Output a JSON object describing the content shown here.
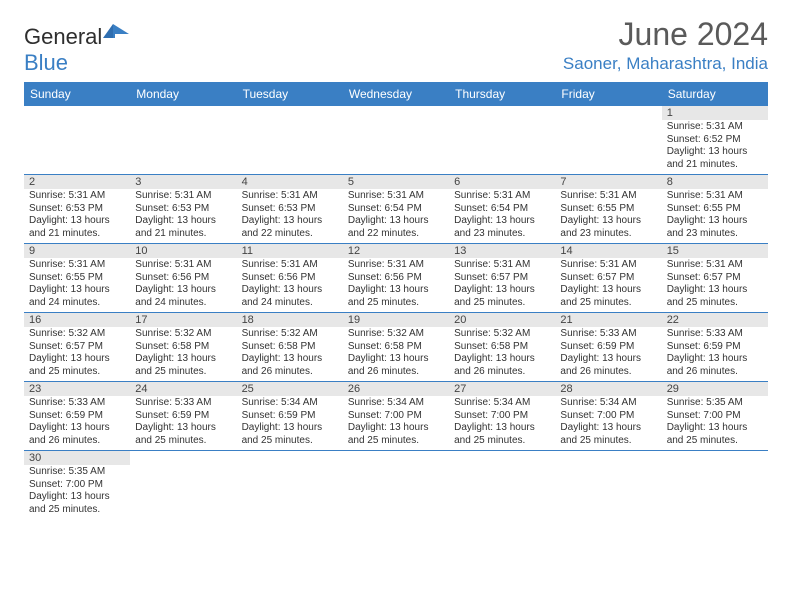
{
  "brand": {
    "part1": "General",
    "part2": "Blue"
  },
  "title": "June 2024",
  "location": "Saoner, Maharashtra, India",
  "colors": {
    "header_bg": "#3a7fc4",
    "header_text": "#ffffff",
    "daynum_bg": "#e7e7e7",
    "week_border": "#3a7fc4",
    "title_color": "#5a5a5a",
    "location_color": "#3a7fc4"
  },
  "day_names": [
    "Sunday",
    "Monday",
    "Tuesday",
    "Wednesday",
    "Thursday",
    "Friday",
    "Saturday"
  ],
  "weeks": [
    [
      null,
      null,
      null,
      null,
      null,
      null,
      {
        "n": "1",
        "sr": "Sunrise: 5:31 AM",
        "ss": "Sunset: 6:52 PM",
        "dl": "Daylight: 13 hours and 21 minutes."
      }
    ],
    [
      {
        "n": "2",
        "sr": "Sunrise: 5:31 AM",
        "ss": "Sunset: 6:53 PM",
        "dl": "Daylight: 13 hours and 21 minutes."
      },
      {
        "n": "3",
        "sr": "Sunrise: 5:31 AM",
        "ss": "Sunset: 6:53 PM",
        "dl": "Daylight: 13 hours and 21 minutes."
      },
      {
        "n": "4",
        "sr": "Sunrise: 5:31 AM",
        "ss": "Sunset: 6:53 PM",
        "dl": "Daylight: 13 hours and 22 minutes."
      },
      {
        "n": "5",
        "sr": "Sunrise: 5:31 AM",
        "ss": "Sunset: 6:54 PM",
        "dl": "Daylight: 13 hours and 22 minutes."
      },
      {
        "n": "6",
        "sr": "Sunrise: 5:31 AM",
        "ss": "Sunset: 6:54 PM",
        "dl": "Daylight: 13 hours and 23 minutes."
      },
      {
        "n": "7",
        "sr": "Sunrise: 5:31 AM",
        "ss": "Sunset: 6:55 PM",
        "dl": "Daylight: 13 hours and 23 minutes."
      },
      {
        "n": "8",
        "sr": "Sunrise: 5:31 AM",
        "ss": "Sunset: 6:55 PM",
        "dl": "Daylight: 13 hours and 23 minutes."
      }
    ],
    [
      {
        "n": "9",
        "sr": "Sunrise: 5:31 AM",
        "ss": "Sunset: 6:55 PM",
        "dl": "Daylight: 13 hours and 24 minutes."
      },
      {
        "n": "10",
        "sr": "Sunrise: 5:31 AM",
        "ss": "Sunset: 6:56 PM",
        "dl": "Daylight: 13 hours and 24 minutes."
      },
      {
        "n": "11",
        "sr": "Sunrise: 5:31 AM",
        "ss": "Sunset: 6:56 PM",
        "dl": "Daylight: 13 hours and 24 minutes."
      },
      {
        "n": "12",
        "sr": "Sunrise: 5:31 AM",
        "ss": "Sunset: 6:56 PM",
        "dl": "Daylight: 13 hours and 25 minutes."
      },
      {
        "n": "13",
        "sr": "Sunrise: 5:31 AM",
        "ss": "Sunset: 6:57 PM",
        "dl": "Daylight: 13 hours and 25 minutes."
      },
      {
        "n": "14",
        "sr": "Sunrise: 5:31 AM",
        "ss": "Sunset: 6:57 PM",
        "dl": "Daylight: 13 hours and 25 minutes."
      },
      {
        "n": "15",
        "sr": "Sunrise: 5:31 AM",
        "ss": "Sunset: 6:57 PM",
        "dl": "Daylight: 13 hours and 25 minutes."
      }
    ],
    [
      {
        "n": "16",
        "sr": "Sunrise: 5:32 AM",
        "ss": "Sunset: 6:57 PM",
        "dl": "Daylight: 13 hours and 25 minutes."
      },
      {
        "n": "17",
        "sr": "Sunrise: 5:32 AM",
        "ss": "Sunset: 6:58 PM",
        "dl": "Daylight: 13 hours and 25 minutes."
      },
      {
        "n": "18",
        "sr": "Sunrise: 5:32 AM",
        "ss": "Sunset: 6:58 PM",
        "dl": "Daylight: 13 hours and 26 minutes."
      },
      {
        "n": "19",
        "sr": "Sunrise: 5:32 AM",
        "ss": "Sunset: 6:58 PM",
        "dl": "Daylight: 13 hours and 26 minutes."
      },
      {
        "n": "20",
        "sr": "Sunrise: 5:32 AM",
        "ss": "Sunset: 6:58 PM",
        "dl": "Daylight: 13 hours and 26 minutes."
      },
      {
        "n": "21",
        "sr": "Sunrise: 5:33 AM",
        "ss": "Sunset: 6:59 PM",
        "dl": "Daylight: 13 hours and 26 minutes."
      },
      {
        "n": "22",
        "sr": "Sunrise: 5:33 AM",
        "ss": "Sunset: 6:59 PM",
        "dl": "Daylight: 13 hours and 26 minutes."
      }
    ],
    [
      {
        "n": "23",
        "sr": "Sunrise: 5:33 AM",
        "ss": "Sunset: 6:59 PM",
        "dl": "Daylight: 13 hours and 26 minutes."
      },
      {
        "n": "24",
        "sr": "Sunrise: 5:33 AM",
        "ss": "Sunset: 6:59 PM",
        "dl": "Daylight: 13 hours and 25 minutes."
      },
      {
        "n": "25",
        "sr": "Sunrise: 5:34 AM",
        "ss": "Sunset: 6:59 PM",
        "dl": "Daylight: 13 hours and 25 minutes."
      },
      {
        "n": "26",
        "sr": "Sunrise: 5:34 AM",
        "ss": "Sunset: 7:00 PM",
        "dl": "Daylight: 13 hours and 25 minutes."
      },
      {
        "n": "27",
        "sr": "Sunrise: 5:34 AM",
        "ss": "Sunset: 7:00 PM",
        "dl": "Daylight: 13 hours and 25 minutes."
      },
      {
        "n": "28",
        "sr": "Sunrise: 5:34 AM",
        "ss": "Sunset: 7:00 PM",
        "dl": "Daylight: 13 hours and 25 minutes."
      },
      {
        "n": "29",
        "sr": "Sunrise: 5:35 AM",
        "ss": "Sunset: 7:00 PM",
        "dl": "Daylight: 13 hours and 25 minutes."
      }
    ],
    [
      {
        "n": "30",
        "sr": "Sunrise: 5:35 AM",
        "ss": "Sunset: 7:00 PM",
        "dl": "Daylight: 13 hours and 25 minutes."
      },
      null,
      null,
      null,
      null,
      null,
      null
    ]
  ]
}
